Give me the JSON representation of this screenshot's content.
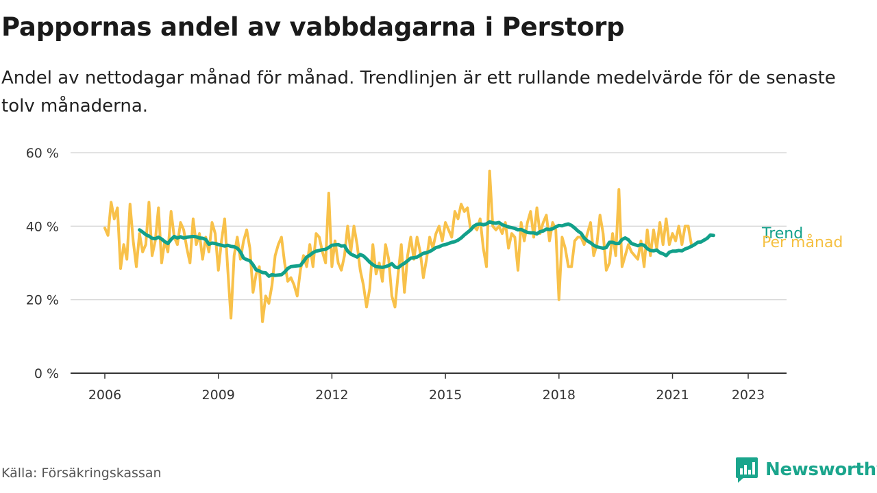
{
  "header": {
    "title": "Pappornas andel av vabbdagarna i Perstorp",
    "subtitle": "Andel av nettodagar månad för månad. Trendlinjen är ett rullande medelvärde för de senaste tolv månaderna."
  },
  "footer": {
    "source": "Källa: Försäkringskassan",
    "brand": "Newsworthy"
  },
  "colors": {
    "monthly": "#f8c14a",
    "trend": "#12a08a",
    "grid": "#d9d9d9",
    "axis": "#333333"
  },
  "icons": [
    "newsworthy-logo-icon"
  ],
  "chart_data": {
    "type": "line",
    "title": "Pappornas andel av vabbdagarna i Perstorp",
    "ylim": [
      0,
      60
    ],
    "xlim": [
      2006,
      2024.1
    ],
    "y_ticks": [
      {
        "value": 0,
        "label": "0 %"
      },
      {
        "value": 20,
        "label": "20 %"
      },
      {
        "value": 40,
        "label": "40 %"
      },
      {
        "value": 60,
        "label": "60 %"
      }
    ],
    "x_ticks": [
      {
        "value": 2006,
        "label": "2006"
      },
      {
        "value": 2009,
        "label": "2009"
      },
      {
        "value": 2012,
        "label": "2012"
      },
      {
        "value": 2015,
        "label": "2015"
      },
      {
        "value": 2018,
        "label": "2018"
      },
      {
        "value": 2021,
        "label": "2021"
      },
      {
        "value": 2023,
        "label": "2023"
      }
    ],
    "grid": true,
    "start": {
      "year": 2006,
      "month": 1
    },
    "series": [
      {
        "name": "Per månad",
        "start": "2006-01",
        "values": [
          39.5,
          37.5,
          46.5,
          42,
          45,
          28.5,
          35,
          31,
          46,
          36,
          29,
          38,
          33,
          35,
          46.5,
          32,
          36,
          45,
          30,
          36,
          33,
          44,
          37,
          35,
          41,
          39,
          34,
          30,
          42,
          35,
          38,
          31,
          37,
          33,
          41,
          38,
          28,
          36,
          42,
          28,
          15,
          32,
          37,
          31,
          36,
          39,
          34,
          22,
          27,
          29,
          14,
          21,
          19,
          24,
          32,
          35,
          37,
          30,
          25,
          26,
          24,
          21,
          28,
          32,
          29,
          35,
          29,
          38,
          37,
          33,
          30,
          49,
          29,
          36,
          30,
          28,
          32,
          40,
          33,
          40,
          35,
          28,
          24,
          18,
          23,
          35,
          27,
          30,
          25,
          35,
          31,
          21,
          18,
          27,
          35,
          22,
          32,
          37,
          31,
          37,
          33,
          26,
          31,
          37,
          34,
          38,
          40,
          36,
          41,
          39,
          37,
          44,
          42,
          46,
          44,
          45,
          39,
          40,
          39,
          42,
          34,
          29,
          55,
          40,
          39,
          40,
          38,
          41,
          34,
          38,
          37,
          28,
          41,
          36,
          41,
          44,
          37,
          45,
          38,
          41,
          43,
          36,
          41,
          39,
          20,
          37,
          34,
          29,
          29,
          36,
          37,
          37,
          35,
          38,
          41,
          32,
          35,
          43,
          38,
          28,
          30,
          38,
          32,
          50,
          29,
          32,
          35,
          33,
          32,
          31,
          36,
          29,
          39,
          32,
          39,
          34,
          41,
          35,
          42,
          35,
          38,
          36,
          40,
          35,
          40,
          40,
          35
        ]
      },
      {
        "name": "Trend",
        "start": "2006-12",
        "values": [
          39,
          38.4,
          37.7,
          37.3,
          36.7,
          36.6,
          37,
          36.5,
          35.8,
          35.3,
          36.4,
          37.2,
          36.8,
          37.1,
          36.8,
          37,
          37.1,
          37.2,
          37.1,
          36.8,
          36.7,
          36.4,
          35.1,
          35.4,
          35.3,
          35,
          34.8,
          34.6,
          34.8,
          34.5,
          34.4,
          34,
          33,
          31.3,
          30.9,
          30.6,
          29.5,
          28.1,
          27.8,
          27.4,
          27.3,
          26.4,
          26.8,
          26.6,
          26.7,
          26.8,
          27.5,
          28.5,
          29,
          29.1,
          29.2,
          29.3,
          30.4,
          31.6,
          32.1,
          32.8,
          33.2,
          33.4,
          33.6,
          33.7,
          34.2,
          34.8,
          34.9,
          35,
          34.6,
          34.7,
          33.2,
          32.4,
          32,
          31.6,
          32.3,
          31.9,
          31.1,
          30.2,
          29.5,
          29,
          28.9,
          28.8,
          29,
          29.3,
          29.8,
          28.9,
          28.7,
          29.4,
          29.9,
          30.6,
          31.3,
          31.4,
          31.6,
          32.1,
          32.6,
          32.8,
          33.1,
          33.6,
          34.2,
          34.4,
          34.8,
          35,
          35.3,
          35.6,
          35.8,
          36.2,
          36.8,
          37.6,
          38.3,
          39,
          40,
          40.5,
          40.6,
          40.4,
          40.6,
          41.2,
          40.9,
          40.8,
          41,
          40.4,
          40.1,
          39.8,
          39.6,
          39.4,
          39,
          39.1,
          38.7,
          38.3,
          38.2,
          38.2,
          37.9,
          38.5,
          38.7,
          39.2,
          39.1,
          39.3,
          39.8,
          40.2,
          40.1,
          40.4,
          40.6,
          40.2,
          39.5,
          38.7,
          38.1,
          36.8,
          36,
          35.5,
          34.8,
          34.4,
          34.2,
          34,
          34.2,
          35.6,
          35.6,
          35.3,
          35.3,
          36.4,
          36.8,
          36.3,
          35.3,
          35,
          34.7,
          35,
          34.8,
          33.9,
          33.4,
          33.3,
          33.5,
          32.8,
          32.5,
          32,
          32.9,
          33.2,
          33.2,
          33.4,
          33.3,
          33.8,
          34.1,
          34.5,
          35,
          35.6,
          35.7,
          36.2,
          36.7,
          37.6,
          37.5
        ]
      }
    ]
  }
}
